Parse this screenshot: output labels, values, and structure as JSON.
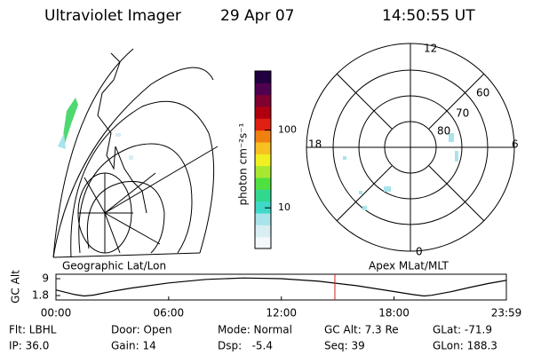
{
  "header": {
    "title": "Ultraviolet Imager",
    "date": "29 Apr 07",
    "time": "14:50:55 UT"
  },
  "left_panel": {
    "label": "Geographic Lat/Lon"
  },
  "right_panel": {
    "label": "Apex MLat/MLT",
    "mlt_labels": [
      "12",
      "18",
      "6",
      "0"
    ],
    "mlat_labels": [
      "60",
      "70",
      "80"
    ]
  },
  "colorbar": {
    "label": "photon cm⁻²s⁻¹",
    "log": true,
    "lim": [
      3,
      575
    ],
    "ticks": [
      10,
      100
    ],
    "colors": [
      "#f4f8fa",
      "#d8eef2",
      "#a8e4ea",
      "#40d8c8",
      "#30d890",
      "#50e040",
      "#a8e830",
      "#f0f020",
      "#f8c020",
      "#f08010",
      "#e02010",
      "#b00010",
      "#800030",
      "#500050",
      "#200040"
    ]
  },
  "chart_data": {
    "type": "line",
    "ylabel": "GC Alt",
    "x": [
      0,
      1,
      1.5,
      2,
      3,
      4,
      6,
      8,
      10,
      12,
      14,
      16,
      18,
      19,
      19.6,
      20,
      21,
      22,
      23,
      23.98
    ],
    "values": [
      4.2,
      2.2,
      1.6,
      2.0,
      3.6,
      5.0,
      7.2,
      8.7,
      9.3,
      9.0,
      7.9,
      6.0,
      3.5,
      2.2,
      1.6,
      1.9,
      3.4,
      5.2,
      6.9,
      8.3
    ],
    "color": "#000000",
    "marker": 14.85,
    "marker_color": "#d02020",
    "xlim": [
      0,
      23.98
    ],
    "xticks": [
      {
        "value": 0,
        "label": "00:00"
      },
      {
        "value": 6,
        "label": "06:00"
      },
      {
        "value": 12,
        "label": "12:00"
      },
      {
        "value": 18,
        "label": "18:00"
      },
      {
        "value": 23.98,
        "label": "23:59"
      }
    ],
    "ylim": [
      -0.1,
      10.9
    ],
    "yticks": [
      1.8,
      9.0
    ]
  },
  "info": {
    "rows": [
      [
        "Flt: LBHL",
        "Door: Open",
        "Mode: Normal",
        "GC Alt: 7.3 Re",
        "GLat: -71.9"
      ],
      [
        "IP: 36.0",
        "Gain: 14",
        "Dsp:   -5.4",
        "Seq: 39",
        "GLon: 188.3"
      ]
    ]
  }
}
